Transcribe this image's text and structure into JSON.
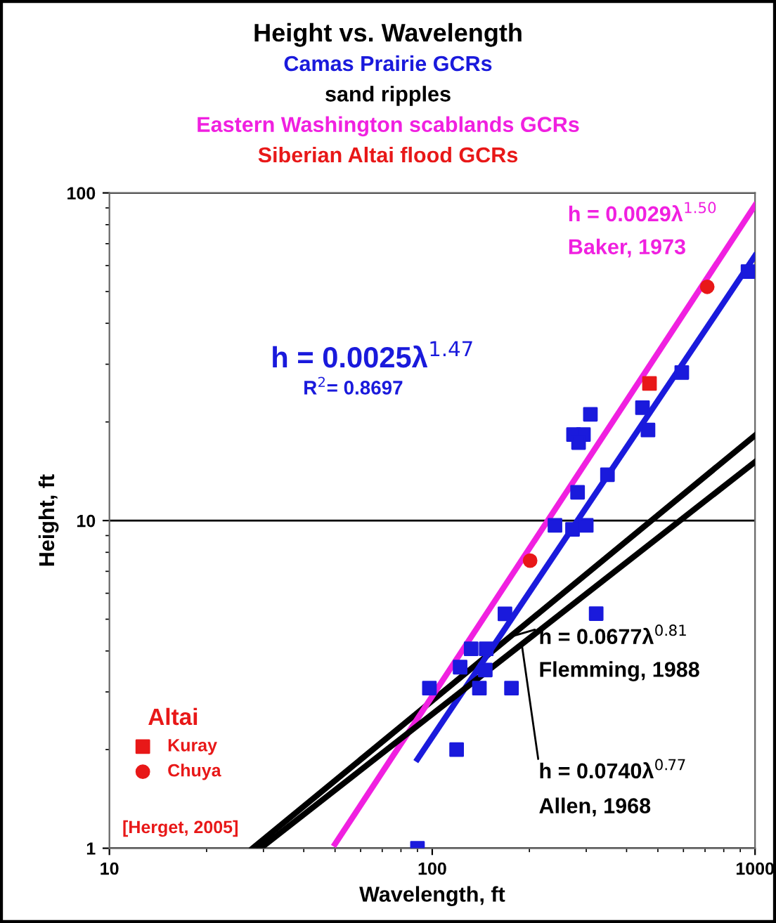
{
  "chart_data": {
    "type": "scatter",
    "title": "Height vs. Wavelength",
    "xlabel": "Wavelength, ft",
    "ylabel": "Height, ft",
    "log": "xy",
    "xlim": [
      10,
      1000
    ],
    "ylim": [
      1,
      100
    ],
    "xticks": [
      10,
      100,
      1000
    ],
    "yticks": [
      1,
      10,
      100
    ],
    "grid": "y",
    "legend": "bottom left",
    "legend_title": "Altai",
    "series": [
      {
        "marker": "square",
        "color": "#1a1adc",
        "x": [
          90,
          98,
          119,
          122,
          132,
          147,
          146,
          140,
          176,
          168,
          322,
          240,
          272,
          300,
          282,
          349,
          274,
          294,
          284,
          309,
          448,
          466,
          593,
          951
        ],
        "values": [
          1.0,
          3.08,
          2.0,
          3.57,
          4.06,
          4.06,
          3.5,
          3.08,
          3.08,
          5.19,
          5.2,
          9.67,
          9.4,
          9.67,
          12.2,
          13.8,
          18.3,
          18.3,
          17.3,
          21.1,
          22.1,
          18.9,
          28.3,
          57.5
        ]
      },
      {
        "type": "line",
        "color": "#000000",
        "x": [
          27.8,
          1000
        ],
        "values": [
          1,
          18.2
        ]
      },
      {
        "type": "line",
        "color": "#f020e0",
        "x": [
          50,
          1000
        ],
        "values": [
          1.03,
          91.7
        ]
      },
      {
        "marker": "square",
        "color": "#e81818",
        "name": "Kuray",
        "x": [
          471
        ],
        "values": [
          26.2
        ]
      },
      {
        "marker": "circle",
        "color": "#e81818",
        "name": "Chuya",
        "x": [
          711,
          201
        ],
        "values": [
          51.7,
          7.55
        ]
      },
      {
        "type": "line",
        "color": "#1a1adc",
        "x": [
          90,
          1000
        ],
        "values": [
          1.87,
          64.3
        ]
      },
      {
        "type": "line",
        "color": "#000000",
        "x": [
          29.4,
          1000
        ],
        "values": [
          1,
          15.1
        ]
      }
    ],
    "annotations": [
      "Camas Prairie GCRs",
      "sand ripples",
      "Eastern Washington scablands GCRs",
      "Siberian Altai flood GCRs",
      "h = 0.0029λ$^{1.50}$",
      "Baker, 1973",
      "h = 0.0025λ$^{1.47}$",
      "R$^{2}$= 0.8697",
      {
        "text": "h = 0.0677λ$^{0.81}$",
        "x": 172,
        "y": 4.4
      },
      "Flemming, 1988",
      {
        "text": "h = 0.0740λ$^{0.77}$",
        "x": 190,
        "y": 4.1
      },
      "Allen, 1968",
      "[Herget, 2005]"
    ]
  }
}
